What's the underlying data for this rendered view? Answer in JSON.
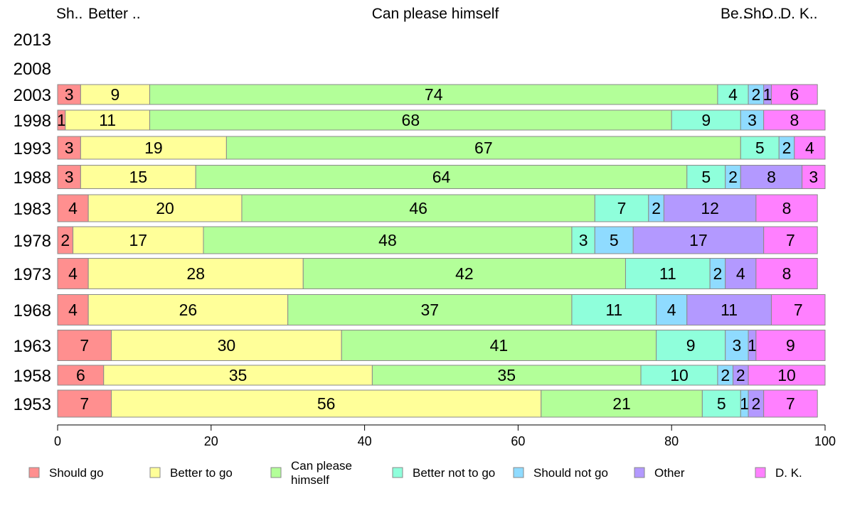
{
  "chart_data": {
    "type": "bar",
    "orientation": "horizontal",
    "stacked": true,
    "categories": [
      "2013",
      "2008",
      "2003",
      "1998",
      "1993",
      "1988",
      "1983",
      "1978",
      "1973",
      "1968",
      "1963",
      "1958",
      "1953"
    ],
    "series": [
      {
        "name": "Should go",
        "color": "#ff8f8f",
        "values": [
          null,
          null,
          3,
          1,
          3,
          3,
          4,
          2,
          4,
          4,
          7,
          6,
          7
        ]
      },
      {
        "name": "Better to go",
        "color": "#ffff99",
        "values": [
          null,
          null,
          9,
          11,
          19,
          15,
          20,
          17,
          28,
          26,
          30,
          35,
          56
        ]
      },
      {
        "name": "Can please himself",
        "color": "#b3ff99",
        "values": [
          null,
          null,
          74,
          68,
          67,
          64,
          46,
          48,
          42,
          37,
          41,
          35,
          21
        ]
      },
      {
        "name": "Better not to go",
        "color": "#8fffdb",
        "values": [
          null,
          null,
          4,
          9,
          5,
          5,
          7,
          3,
          11,
          11,
          9,
          10,
          5
        ]
      },
      {
        "name": "Should not go",
        "color": "#8fdbff",
        "values": [
          null,
          null,
          2,
          3,
          2,
          2,
          2,
          5,
          2,
          4,
          3,
          2,
          1
        ]
      },
      {
        "name": "Other",
        "color": "#b399ff",
        "values": [
          null,
          null,
          1,
          0,
          0,
          8,
          12,
          17,
          4,
          11,
          1,
          2,
          2
        ]
      },
      {
        "name": "D. K.",
        "color": "#ff80ff",
        "values": [
          null,
          null,
          6,
          8,
          4,
          3,
          8,
          7,
          8,
          7,
          9,
          10,
          7
        ]
      }
    ],
    "xlim": [
      0,
      100
    ],
    "xticks": [
      0,
      20,
      40,
      60,
      80,
      100
    ],
    "top_labels": [
      "Sh..",
      "Better ..",
      "Can please himself",
      "Be..",
      "Sh..",
      "O..",
      "D. K.."
    ],
    "legend_position": "bottom",
    "legend_labels": [
      "Should go",
      "Better to go",
      "Can please\nhimself",
      "Better not to go",
      "Should not go",
      "Other",
      "D. K."
    ],
    "grid": false
  }
}
